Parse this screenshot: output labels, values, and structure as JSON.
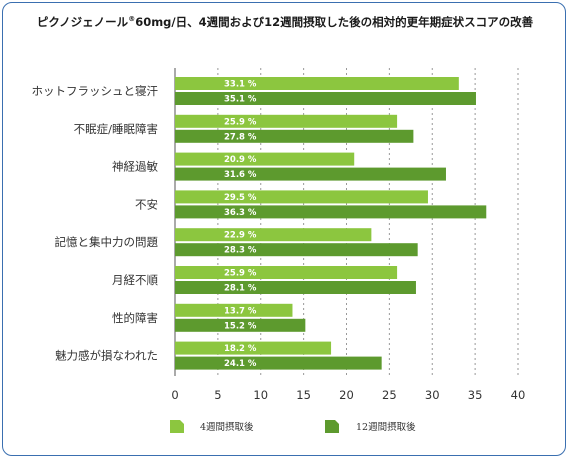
{
  "chart_data": {
    "type": "bar",
    "orientation": "horizontal",
    "title": "ピクノジェノール®60mg/日、4週間および12週間摂取した後の相対的更年期症状スコアの改善",
    "categories": [
      "ホットフラッシュと寝汗",
      "不眠症/睡眠障害",
      "神経過敏",
      "不安",
      "記憶と集中力の問題",
      "月経不順",
      "性的障害",
      "魅力感が損なわれた"
    ],
    "series": [
      {
        "name": "4週間摂取後",
        "color": "#8cc63f",
        "values": [
          33.1,
          25.9,
          20.9,
          29.5,
          22.9,
          25.9,
          13.7,
          18.2
        ]
      },
      {
        "name": "12週間摂取後",
        "color": "#5d9a2e",
        "values": [
          35.1,
          27.8,
          31.6,
          36.3,
          28.3,
          28.1,
          15.2,
          24.1
        ]
      }
    ],
    "value_labels": [
      [
        "33.1 %",
        "25.9 %",
        "20.9 %",
        "29.5 %",
        "22.9 %",
        "25.9 %",
        "13.7 %",
        "18.2 %"
      ],
      [
        "35.1 %",
        "27.8 %",
        "31.6 %",
        "36.3 %",
        "28.3 %",
        "28.1 %",
        "15.2 %",
        "24.1 %"
      ]
    ],
    "xlim": [
      0,
      40
    ],
    "xticks": [
      0,
      5,
      10,
      15,
      20,
      25,
      30,
      35,
      40
    ],
    "xlabel": "",
    "ylabel": "",
    "grid": "vertical-dotted",
    "legend": "bottom"
  }
}
